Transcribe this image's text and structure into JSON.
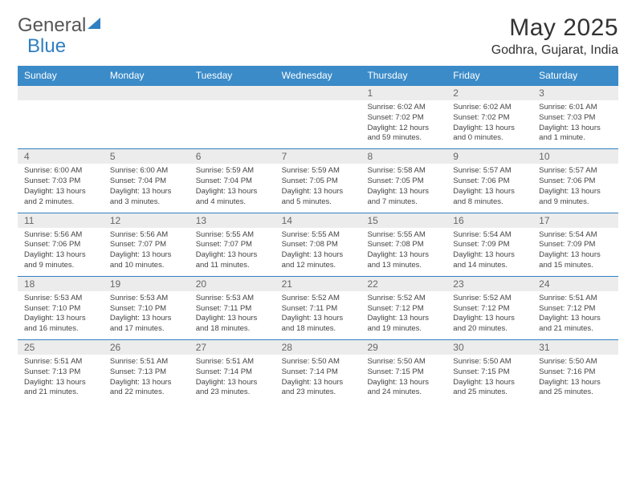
{
  "logo": {
    "part1": "General",
    "part2": "Blue"
  },
  "title": {
    "month": "May 2025",
    "location": "Godhra, Gujarat, India"
  },
  "colors": {
    "header_bg": "#3b8bc8",
    "rule": "#2f7fc1",
    "numrow_bg": "#ececec",
    "text": "#444444"
  },
  "weekdays": [
    "Sunday",
    "Monday",
    "Tuesday",
    "Wednesday",
    "Thursday",
    "Friday",
    "Saturday"
  ],
  "weeks": [
    {
      "nums": [
        "",
        "",
        "",
        "",
        "1",
        "2",
        "3"
      ],
      "cells": [
        {
          "sunrise": "",
          "sunset": "",
          "daylight": ""
        },
        {
          "sunrise": "",
          "sunset": "",
          "daylight": ""
        },
        {
          "sunrise": "",
          "sunset": "",
          "daylight": ""
        },
        {
          "sunrise": "",
          "sunset": "",
          "daylight": ""
        },
        {
          "sunrise": "Sunrise: 6:02 AM",
          "sunset": "Sunset: 7:02 PM",
          "daylight": "Daylight: 12 hours and 59 minutes."
        },
        {
          "sunrise": "Sunrise: 6:02 AM",
          "sunset": "Sunset: 7:02 PM",
          "daylight": "Daylight: 13 hours and 0 minutes."
        },
        {
          "sunrise": "Sunrise: 6:01 AM",
          "sunset": "Sunset: 7:03 PM",
          "daylight": "Daylight: 13 hours and 1 minute."
        }
      ]
    },
    {
      "nums": [
        "4",
        "5",
        "6",
        "7",
        "8",
        "9",
        "10"
      ],
      "cells": [
        {
          "sunrise": "Sunrise: 6:00 AM",
          "sunset": "Sunset: 7:03 PM",
          "daylight": "Daylight: 13 hours and 2 minutes."
        },
        {
          "sunrise": "Sunrise: 6:00 AM",
          "sunset": "Sunset: 7:04 PM",
          "daylight": "Daylight: 13 hours and 3 minutes."
        },
        {
          "sunrise": "Sunrise: 5:59 AM",
          "sunset": "Sunset: 7:04 PM",
          "daylight": "Daylight: 13 hours and 4 minutes."
        },
        {
          "sunrise": "Sunrise: 5:59 AM",
          "sunset": "Sunset: 7:05 PM",
          "daylight": "Daylight: 13 hours and 5 minutes."
        },
        {
          "sunrise": "Sunrise: 5:58 AM",
          "sunset": "Sunset: 7:05 PM",
          "daylight": "Daylight: 13 hours and 7 minutes."
        },
        {
          "sunrise": "Sunrise: 5:57 AM",
          "sunset": "Sunset: 7:06 PM",
          "daylight": "Daylight: 13 hours and 8 minutes."
        },
        {
          "sunrise": "Sunrise: 5:57 AM",
          "sunset": "Sunset: 7:06 PM",
          "daylight": "Daylight: 13 hours and 9 minutes."
        }
      ]
    },
    {
      "nums": [
        "11",
        "12",
        "13",
        "14",
        "15",
        "16",
        "17"
      ],
      "cells": [
        {
          "sunrise": "Sunrise: 5:56 AM",
          "sunset": "Sunset: 7:06 PM",
          "daylight": "Daylight: 13 hours and 9 minutes."
        },
        {
          "sunrise": "Sunrise: 5:56 AM",
          "sunset": "Sunset: 7:07 PM",
          "daylight": "Daylight: 13 hours and 10 minutes."
        },
        {
          "sunrise": "Sunrise: 5:55 AM",
          "sunset": "Sunset: 7:07 PM",
          "daylight": "Daylight: 13 hours and 11 minutes."
        },
        {
          "sunrise": "Sunrise: 5:55 AM",
          "sunset": "Sunset: 7:08 PM",
          "daylight": "Daylight: 13 hours and 12 minutes."
        },
        {
          "sunrise": "Sunrise: 5:55 AM",
          "sunset": "Sunset: 7:08 PM",
          "daylight": "Daylight: 13 hours and 13 minutes."
        },
        {
          "sunrise": "Sunrise: 5:54 AM",
          "sunset": "Sunset: 7:09 PM",
          "daylight": "Daylight: 13 hours and 14 minutes."
        },
        {
          "sunrise": "Sunrise: 5:54 AM",
          "sunset": "Sunset: 7:09 PM",
          "daylight": "Daylight: 13 hours and 15 minutes."
        }
      ]
    },
    {
      "nums": [
        "18",
        "19",
        "20",
        "21",
        "22",
        "23",
        "24"
      ],
      "cells": [
        {
          "sunrise": "Sunrise: 5:53 AM",
          "sunset": "Sunset: 7:10 PM",
          "daylight": "Daylight: 13 hours and 16 minutes."
        },
        {
          "sunrise": "Sunrise: 5:53 AM",
          "sunset": "Sunset: 7:10 PM",
          "daylight": "Daylight: 13 hours and 17 minutes."
        },
        {
          "sunrise": "Sunrise: 5:53 AM",
          "sunset": "Sunset: 7:11 PM",
          "daylight": "Daylight: 13 hours and 18 minutes."
        },
        {
          "sunrise": "Sunrise: 5:52 AM",
          "sunset": "Sunset: 7:11 PM",
          "daylight": "Daylight: 13 hours and 18 minutes."
        },
        {
          "sunrise": "Sunrise: 5:52 AM",
          "sunset": "Sunset: 7:12 PM",
          "daylight": "Daylight: 13 hours and 19 minutes."
        },
        {
          "sunrise": "Sunrise: 5:52 AM",
          "sunset": "Sunset: 7:12 PM",
          "daylight": "Daylight: 13 hours and 20 minutes."
        },
        {
          "sunrise": "Sunrise: 5:51 AM",
          "sunset": "Sunset: 7:12 PM",
          "daylight": "Daylight: 13 hours and 21 minutes."
        }
      ]
    },
    {
      "nums": [
        "25",
        "26",
        "27",
        "28",
        "29",
        "30",
        "31"
      ],
      "cells": [
        {
          "sunrise": "Sunrise: 5:51 AM",
          "sunset": "Sunset: 7:13 PM",
          "daylight": "Daylight: 13 hours and 21 minutes."
        },
        {
          "sunrise": "Sunrise: 5:51 AM",
          "sunset": "Sunset: 7:13 PM",
          "daylight": "Daylight: 13 hours and 22 minutes."
        },
        {
          "sunrise": "Sunrise: 5:51 AM",
          "sunset": "Sunset: 7:14 PM",
          "daylight": "Daylight: 13 hours and 23 minutes."
        },
        {
          "sunrise": "Sunrise: 5:50 AM",
          "sunset": "Sunset: 7:14 PM",
          "daylight": "Daylight: 13 hours and 23 minutes."
        },
        {
          "sunrise": "Sunrise: 5:50 AM",
          "sunset": "Sunset: 7:15 PM",
          "daylight": "Daylight: 13 hours and 24 minutes."
        },
        {
          "sunrise": "Sunrise: 5:50 AM",
          "sunset": "Sunset: 7:15 PM",
          "daylight": "Daylight: 13 hours and 25 minutes."
        },
        {
          "sunrise": "Sunrise: 5:50 AM",
          "sunset": "Sunset: 7:16 PM",
          "daylight": "Daylight: 13 hours and 25 minutes."
        }
      ]
    }
  ]
}
